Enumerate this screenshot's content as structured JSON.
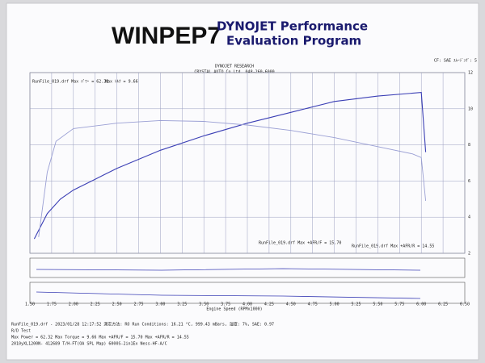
{
  "header": {
    "logo": "WINPEP7",
    "title_line1": "DYNOJET Performance",
    "title_line2": "Evaluation Program",
    "settings": "CF: SAE  ｽﾑｰｼﾞﾝｸﾞ: 5"
  },
  "chart_data": {
    "type": "line",
    "title": "DYNOJET RESEARCH",
    "subtitle": "CRYSTAL AUTO Co.Ltd.  048-260-6000",
    "xlabel": "Engine Speed (RPMx1000)",
    "annotations": [
      "RunFile_019.drf Max +AFR/F = 15.70",
      "RunFile_019.drf Max +AFR/R = 14.55"
    ],
    "xlim": [
      1.5,
      6.5
    ],
    "xticks": [
      {
        "value": 1.5,
        "label": "1.50"
      },
      1.75,
      {
        "value": 2,
        "label": "2.00"
      },
      2.25,
      {
        "value": 2.5,
        "label": "2.50"
      },
      2.75,
      {
        "value": 3,
        "label": "3.00"
      },
      3.25,
      {
        "value": 3.5,
        "label": "3.50"
      },
      3.75,
      {
        "value": 4,
        "label": "4.00"
      },
      4.25,
      {
        "value": 4.5,
        "label": "4.50"
      },
      4.75,
      {
        "value": 5,
        "label": "5.00"
      },
      5.25,
      {
        "value": 5.5,
        "label": "5.50"
      },
      5.75,
      {
        "value": 6,
        "label": "6.00"
      },
      6.25,
      {
        "value": 6.5,
        "label": "6.50"
      }
    ],
    "ylim": [
      2,
      12
    ],
    "yticks": [
      2,
      4,
      6,
      8,
      10,
      12
    ],
    "grid": true,
    "series": [
      {
        "name": "RunFile_019.drf Max ﾊﾟﾜｰ = 62.32",
        "color": "#3b3fb5",
        "x": [
          1.55,
          1.7,
          1.85,
          2.0,
          2.25,
          2.5,
          2.75,
          3.0,
          3.5,
          4.0,
          4.5,
          5.0,
          5.5,
          6.0,
          6.05
        ],
        "values": [
          2.8,
          4.2,
          5.0,
          5.5,
          6.1,
          6.7,
          7.2,
          7.7,
          8.5,
          9.2,
          9.8,
          10.4,
          10.7,
          10.9,
          7.6
        ]
      },
      {
        "name": "Max ﾄﾙｸ = 9.66",
        "color": "#9a9fd4",
        "x": [
          1.6,
          1.7,
          1.8,
          2.0,
          2.5,
          3.0,
          3.5,
          4.0,
          4.5,
          5.0,
          5.5,
          5.9,
          6.0,
          6.05
        ],
        "values": [
          2.9,
          6.5,
          8.2,
          8.9,
          9.2,
          9.35,
          9.3,
          9.1,
          8.8,
          8.4,
          7.9,
          7.5,
          7.3,
          4.9
        ]
      }
    ]
  },
  "footer": {
    "lines": [
      "RunFile_019.drf - 2023/01/28 12:17:52  測定方法: RO  Run Conditions: 16.21 °C, 999.43 mBars, 湿度: 7%, SAE: 0.97",
      "R/D Test",
      "Max Power = 62.32  Max Torque = 9.66  Max +AFR/F = 15.70  Max +AFR/R = 14.55",
      "2010yXL1200N-        412689  T/H-FT(OA SPL Map) 6000S-2in1Ex  Ness-HF-A/C"
    ]
  }
}
